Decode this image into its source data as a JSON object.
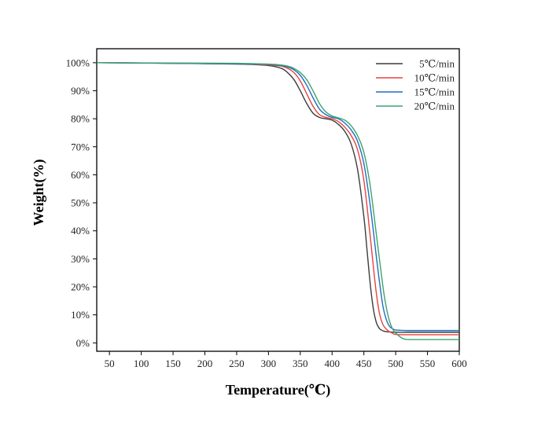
{
  "chart_data": {
    "type": "line",
    "title": "",
    "xlabel": "Temperature(℃)",
    "ylabel": "Weight(%)",
    "xlim": [
      30,
      600
    ],
    "ylim": [
      -3,
      105
    ],
    "x_ticks": [
      50,
      100,
      150,
      200,
      250,
      300,
      350,
      400,
      450,
      500,
      550,
      600
    ],
    "x_tick_labels": [
      "50",
      "100",
      "150",
      "200",
      "250",
      "300",
      "350",
      "400",
      "450",
      "500",
      "550",
      "600"
    ],
    "y_ticks": [
      0,
      10,
      20,
      30,
      40,
      50,
      60,
      70,
      80,
      90,
      100
    ],
    "y_tick_labels": [
      "0%",
      "10%",
      "20%",
      "30%",
      "40%",
      "50%",
      "60%",
      "70%",
      "80%",
      "90%",
      "100%"
    ],
    "grid": false,
    "legend_position": "top-right",
    "series": [
      {
        "name": "5℃/min",
        "color": "#3c3c3c",
        "x": [
          30,
          150,
          250,
          300,
          320,
          330,
          340,
          350,
          360,
          370,
          380,
          390,
          400,
          410,
          420,
          430,
          440,
          450,
          455,
          460,
          465,
          470,
          475,
          480,
          485,
          490,
          500,
          520,
          560,
          600
        ],
        "y": [
          100,
          99.8,
          99.5,
          99,
          98,
          96.5,
          94,
          90,
          85.5,
          82,
          80.5,
          80,
          79.5,
          78,
          75.5,
          71,
          62,
          45,
          33,
          21,
          12,
          7,
          5,
          4.3,
          4,
          3.9,
          3.8,
          3.8,
          3.8,
          3.8
        ]
      },
      {
        "name": "10℃/min",
        "color": "#e8423f",
        "x": [
          30,
          150,
          250,
          300,
          320,
          330,
          340,
          350,
          360,
          370,
          380,
          390,
          400,
          410,
          420,
          430,
          440,
          450,
          460,
          465,
          470,
          475,
          480,
          485,
          490,
          495,
          500,
          520,
          560,
          600
        ],
        "y": [
          100,
          99.8,
          99.6,
          99.2,
          98.8,
          98,
          96.5,
          93.5,
          89,
          84.5,
          81.5,
          80.5,
          80,
          79,
          77,
          74,
          69,
          58,
          38,
          27,
          17,
          10,
          6.5,
          5,
          4,
          3.5,
          3,
          2.9,
          2.9,
          2.9
        ]
      },
      {
        "name": "15℃/min",
        "color": "#1f6fc0",
        "x": [
          30,
          150,
          250,
          300,
          320,
          330,
          340,
          350,
          360,
          370,
          380,
          390,
          400,
          410,
          420,
          430,
          440,
          450,
          460,
          470,
          475,
          480,
          485,
          490,
          495,
          500,
          505,
          520,
          560,
          600
        ],
        "y": [
          100,
          99.8,
          99.6,
          99.4,
          99,
          98.5,
          97.5,
          95.5,
          92,
          87.5,
          83.5,
          81.5,
          80.5,
          80,
          78.5,
          76,
          72,
          64,
          49,
          30,
          21,
          13,
          8.5,
          6,
          5,
          4.6,
          4.5,
          4.4,
          4.4,
          4.4
        ]
      },
      {
        "name": "20℃/min",
        "color": "#3da36e",
        "x": [
          30,
          150,
          250,
          300,
          320,
          330,
          340,
          350,
          360,
          370,
          380,
          390,
          400,
          410,
          420,
          430,
          440,
          450,
          460,
          470,
          480,
          485,
          490,
          495,
          500,
          505,
          510,
          515,
          520,
          560,
          600
        ],
        "y": [
          100,
          99.9,
          99.8,
          99.5,
          99.2,
          98.8,
          98,
          96.5,
          94,
          90,
          85.5,
          82.5,
          81,
          80.3,
          79.5,
          77.5,
          74,
          68,
          56,
          38,
          20,
          13,
          8,
          5,
          3.5,
          2.5,
          1.7,
          1.3,
          1.2,
          1.2,
          1.2
        ]
      }
    ]
  }
}
